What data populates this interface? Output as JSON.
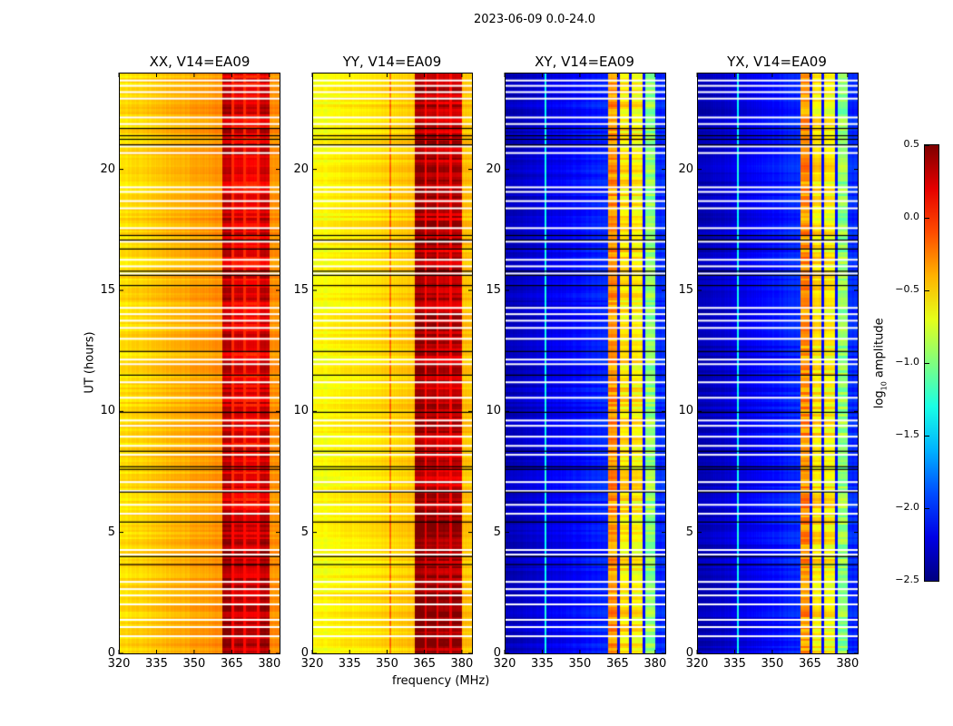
{
  "chart_data": {
    "type": "heatmap",
    "title": "2023-06-09 0.0-24.0",
    "xlabel": "frequency (MHz)",
    "ylabel": "UT (hours)",
    "xlim": [
      320,
      384.4
    ],
    "ylim": [
      0,
      24
    ],
    "xticks": [
      "320",
      "335",
      "350",
      "365",
      "380"
    ],
    "yticks": [
      "0",
      "5",
      "10",
      "15",
      "20"
    ],
    "colorbar": {
      "label_main": "log",
      "label_sub": "10",
      "label_rest": " amplitude",
      "range": [
        -2.5,
        0.5
      ],
      "ticks": [
        "0.5",
        "0.0",
        "−0.5",
        "−1.0",
        "−1.5",
        "−2.0",
        "−2.5"
      ],
      "tick_values": [
        0.5,
        0.0,
        -0.5,
        -1.0,
        -1.5,
        -2.0,
        -2.5
      ],
      "colormap": "jet"
    },
    "panels": [
      {
        "title": "XX, V14=EA09",
        "offband_log10": [
          -0.55,
          -0.3
        ],
        "band_log10": [
          0.05,
          0.35
        ],
        "subband_log10": [
          0.3,
          0.2,
          0.15,
          0.25
        ],
        "gap_log10": 0.0
      },
      {
        "title": "YY, V14=EA09",
        "offband_log10": [
          -0.65,
          -0.45
        ],
        "band_log10": [
          0.2,
          0.45
        ],
        "subband_log10": [
          0.4,
          0.35,
          0.3,
          0.3
        ],
        "gap_log10": 0.1,
        "rfi_channel_mhz": 351
      },
      {
        "title": "XY, V14=EA09",
        "offband_log10": [
          -2.35,
          -2.0
        ],
        "band_log10": [
          -1.0,
          0.0
        ],
        "subband_log10": [
          -0.3,
          -0.55,
          -0.6,
          -0.95
        ],
        "gap_log10": -2.1,
        "rfi_channel_mhz": 336
      },
      {
        "title": "YX, V14=EA09",
        "offband_log10": [
          -2.35,
          -2.0
        ],
        "band_log10": [
          -1.0,
          0.0
        ],
        "subband_log10": [
          -0.3,
          -0.55,
          -0.6,
          -0.95
        ],
        "gap_log10": -2.1,
        "rfi_channel_mhz": 336
      }
    ],
    "band_mhz": [
      361,
      380.3
    ],
    "subband_edges_mhz": [
      361,
      365.4,
      370.2,
      375.5,
      380.3
    ],
    "flagged_hours_white": [
      23.71,
      23.49,
      23.23,
      22.96,
      22.18,
      21.91,
      20.98,
      20.71,
      19.29,
      19.1,
      18.72,
      18.42,
      17.6,
      17.04,
      16.29,
      16.02,
      15.72,
      14.3,
      14.04,
      13.77,
      13.47,
      13.02,
      12.16,
      11.97,
      11.22,
      10.58,
      9.64,
      9.42,
      8.97,
      8.59,
      8.22,
      7.09,
      6.72,
      6.15,
      5.78,
      4.28,
      4.09,
      2.96,
      2.66,
      2.4,
      2.03,
      1.39,
      1.09,
      0.71
    ],
    "scan_boundaries_hours_black": [
      21.73,
      21.43,
      21.28,
      21.05,
      17.3,
      17.11,
      16.74,
      15.82,
      15.65,
      15.23,
      12.5,
      11.52,
      9.98,
      8.37,
      7.73,
      7.62,
      6.68,
      5.44,
      4.01,
      3.68
    ],
    "colors": {
      "flag": "#ffffff",
      "boundary": "#000000"
    }
  }
}
